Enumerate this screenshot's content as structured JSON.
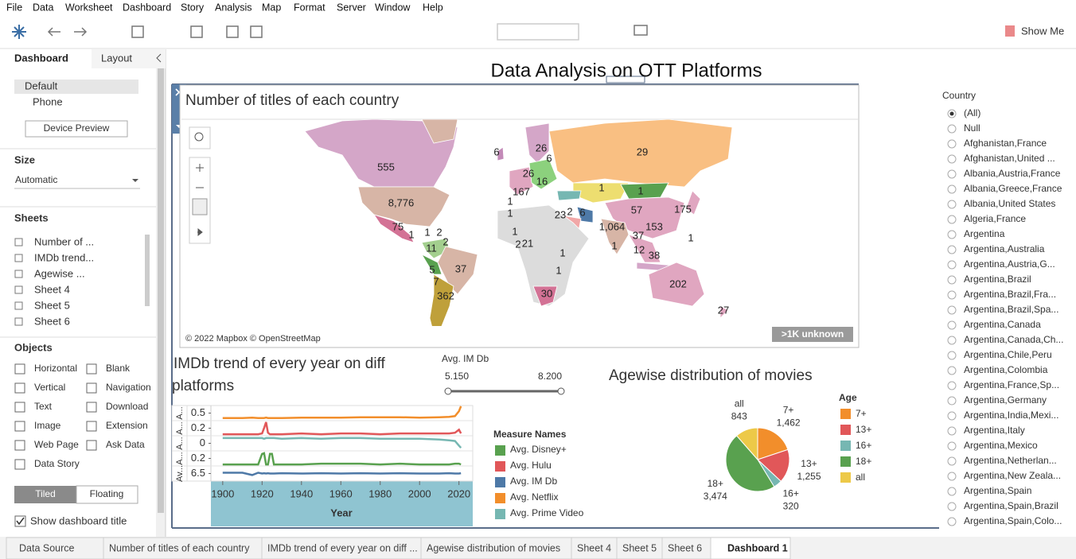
{
  "menu": [
    "File",
    "Data",
    "Worksheet",
    "Dashboard",
    "Story",
    "Analysis",
    "Map",
    "Format",
    "Server",
    "Window",
    "Help"
  ],
  "toolbar": {
    "show_me": "Show Me"
  },
  "side_panel": {
    "tabs": [
      "Dashboard",
      "Layout"
    ],
    "devices": [
      "Default",
      "Phone"
    ],
    "device_preview": "Device Preview",
    "size_heading": "Size",
    "size_value": "Automatic",
    "sheets_heading": "Sheets",
    "sheets": [
      "Number of ...",
      "IMDb trend...",
      "Agewise ...",
      "Sheet 4",
      "Sheet 5",
      "Sheet 6"
    ],
    "objects_heading": "Objects",
    "objects": [
      "Horizontal",
      "Blank",
      "Vertical",
      "Navigation",
      "Text",
      "Download",
      "Image",
      "Extension",
      "Web Page",
      "Ask Data",
      "Data Story"
    ],
    "layout_modes": [
      "Tiled",
      "Floating"
    ],
    "show_title": "Show dashboard title"
  },
  "dashboard": {
    "title": "Data Analysis on OTT Platforms"
  },
  "map": {
    "title": "Number of titles of each country",
    "labels": [
      "555",
      "8,776",
      "29",
      "1",
      "1",
      "57",
      "175",
      "1,064",
      "153",
      "37",
      "12",
      "38",
      "1",
      "1",
      "202",
      "27",
      "362",
      "37",
      "5",
      "11",
      "1",
      "2",
      "1",
      "2",
      "75",
      "6",
      "26",
      "6",
      "26",
      "16",
      "167",
      "1",
      "1",
      "23",
      "2",
      "6",
      "1",
      "2",
      "21",
      "1",
      "1",
      "30",
      "7"
    ],
    "attribution": "© 2022 Mapbox © OpenStreetMap",
    "unknown": ">1K unknown"
  },
  "line_chart": {
    "type": "line",
    "title_lines": [
      "IMDb trend of every year on diff",
      "platforms"
    ],
    "x_label": "Year",
    "xlim": [
      1894,
      2027
    ],
    "xticks": [
      1900,
      1920,
      1940,
      1960,
      1980,
      2000,
      2020
    ],
    "x": [
      1900,
      1910,
      1915,
      1918,
      1920,
      1921,
      1922,
      1923,
      1924,
      1925,
      1926,
      1930,
      1940,
      1950,
      1960,
      1970,
      1980,
      1990,
      2000,
      2010,
      2015,
      2018,
      2020,
      2021
    ],
    "legend_title": "Measure Names",
    "series": [
      {
        "name": "Avg. Disney+",
        "row_label": "A...",
        "color": "#59a14f",
        "ylim": [
          0.1,
          0.3
        ],
        "yticks": [
          0.2
        ],
        "values": [
          0.12,
          0.12,
          0.12,
          0.12,
          0.26,
          0.27,
          0.12,
          0.12,
          0.26,
          0.26,
          0.12,
          0.12,
          0.12,
          0.13,
          0.13,
          0.13,
          0.12,
          0.13,
          0.12,
          0.12,
          0.12,
          0.13,
          0.13,
          0.12
        ]
      },
      {
        "name": "Avg. Hulu",
        "row_label": "A...",
        "color": "#e15759",
        "ylim": [
          0.1,
          0.3
        ],
        "yticks": [
          0.2
        ],
        "values": [
          0.12,
          0.12,
          0.12,
          0.12,
          0.13,
          0.2,
          0.28,
          0.14,
          0.12,
          0.12,
          0.12,
          0.12,
          0.13,
          0.12,
          0.13,
          0.13,
          0.12,
          0.13,
          0.13,
          0.13,
          0.13,
          0.14,
          0.18,
          0.13
        ]
      },
      {
        "name": "Avg. IM Db",
        "row_label": "Av...",
        "color": "#4e79a7",
        "ylim": [
          6,
          7
        ],
        "yticks": [
          6.5
        ],
        "values": [
          6.55,
          6.55,
          6.4,
          6.55,
          6.5,
          6.52,
          6.5,
          6.52,
          6.5,
          6.5,
          6.5,
          6.52,
          6.5,
          6.52,
          6.5,
          6.52,
          6.5,
          6.52,
          6.5,
          6.5,
          6.52,
          6.5,
          6.5,
          6.52
        ]
      },
      {
        "name": "Avg. Netflix",
        "row_label": "A...",
        "color": "#f28e2b",
        "ylim": [
          0.3,
          0.7
        ],
        "yticks": [
          0.5
        ],
        "values": [
          0.37,
          0.37,
          0.38,
          0.37,
          0.37,
          0.37,
          0.38,
          0.37,
          0.37,
          0.37,
          0.37,
          0.37,
          0.38,
          0.38,
          0.38,
          0.39,
          0.39,
          0.39,
          0.38,
          0.39,
          0.4,
          0.42,
          0.55,
          0.68
        ]
      },
      {
        "name": "Avg. Prime Video",
        "row_label": "A...",
        "color": "#76b7b2",
        "ylim": [
          -0.1,
          0.1
        ],
        "yticks": [
          0
        ],
        "values": [
          0.07,
          0.07,
          0.07,
          0.07,
          0.07,
          0.06,
          0.07,
          0.07,
          0.07,
          0.07,
          0.07,
          0.06,
          0.07,
          0.06,
          0.07,
          0.07,
          0.06,
          0.06,
          0.06,
          0.05,
          0.04,
          0.03,
          -0.03,
          -0.06
        ]
      }
    ]
  },
  "slider": {
    "title": "Avg. IM Db",
    "min_label": "5.150",
    "max_label": "8.200"
  },
  "pie_chart": {
    "type": "pie",
    "title": "Agewise distribution of movies",
    "legend_title": "Age",
    "categories": [
      "7+",
      "13+",
      "16+",
      "18+",
      "all"
    ],
    "values": [
      1462,
      1255,
      320,
      3474,
      843
    ],
    "value_labels": [
      "1,462",
      "1,255",
      "320",
      "3,474",
      "843"
    ],
    "colors": [
      "#f28e2b",
      "#e15759",
      "#76b7b2",
      "#59a14f",
      "#edc948"
    ]
  },
  "country_filter": {
    "title": "Country",
    "selected": 0,
    "options": [
      "(All)",
      "Null",
      "Afghanistan,France",
      "Afghanistan,United ...",
      "Albania,Austria,France",
      "Albania,Greece,France",
      "Albania,United States",
      "Algeria,France",
      "Argentina",
      "Argentina,Australia",
      "Argentina,Austria,G...",
      "Argentina,Brazil",
      "Argentina,Brazil,Fra...",
      "Argentina,Brazil,Spa...",
      "Argentina,Canada",
      "Argentina,Canada,Ch...",
      "Argentina,Chile,Peru",
      "Argentina,Colombia",
      "Argentina,France,Sp...",
      "Argentina,Germany",
      "Argentina,India,Mexi...",
      "Argentina,Italy",
      "Argentina,Mexico",
      "Argentina,Netherlan...",
      "Argentina,New Zeala...",
      "Argentina,Spain",
      "Argentina,Spain,Brazil",
      "Argentina,Spain,Colo..."
    ]
  },
  "sheet_tabs": {
    "active": 7,
    "tabs": [
      "Data Source",
      "Number of titles of each country",
      "IMDb trend of every year on diff ...",
      "Agewise distribution of movies",
      "Sheet 4",
      "Sheet 5",
      "Sheet 6",
      "Dashboard 1"
    ]
  }
}
